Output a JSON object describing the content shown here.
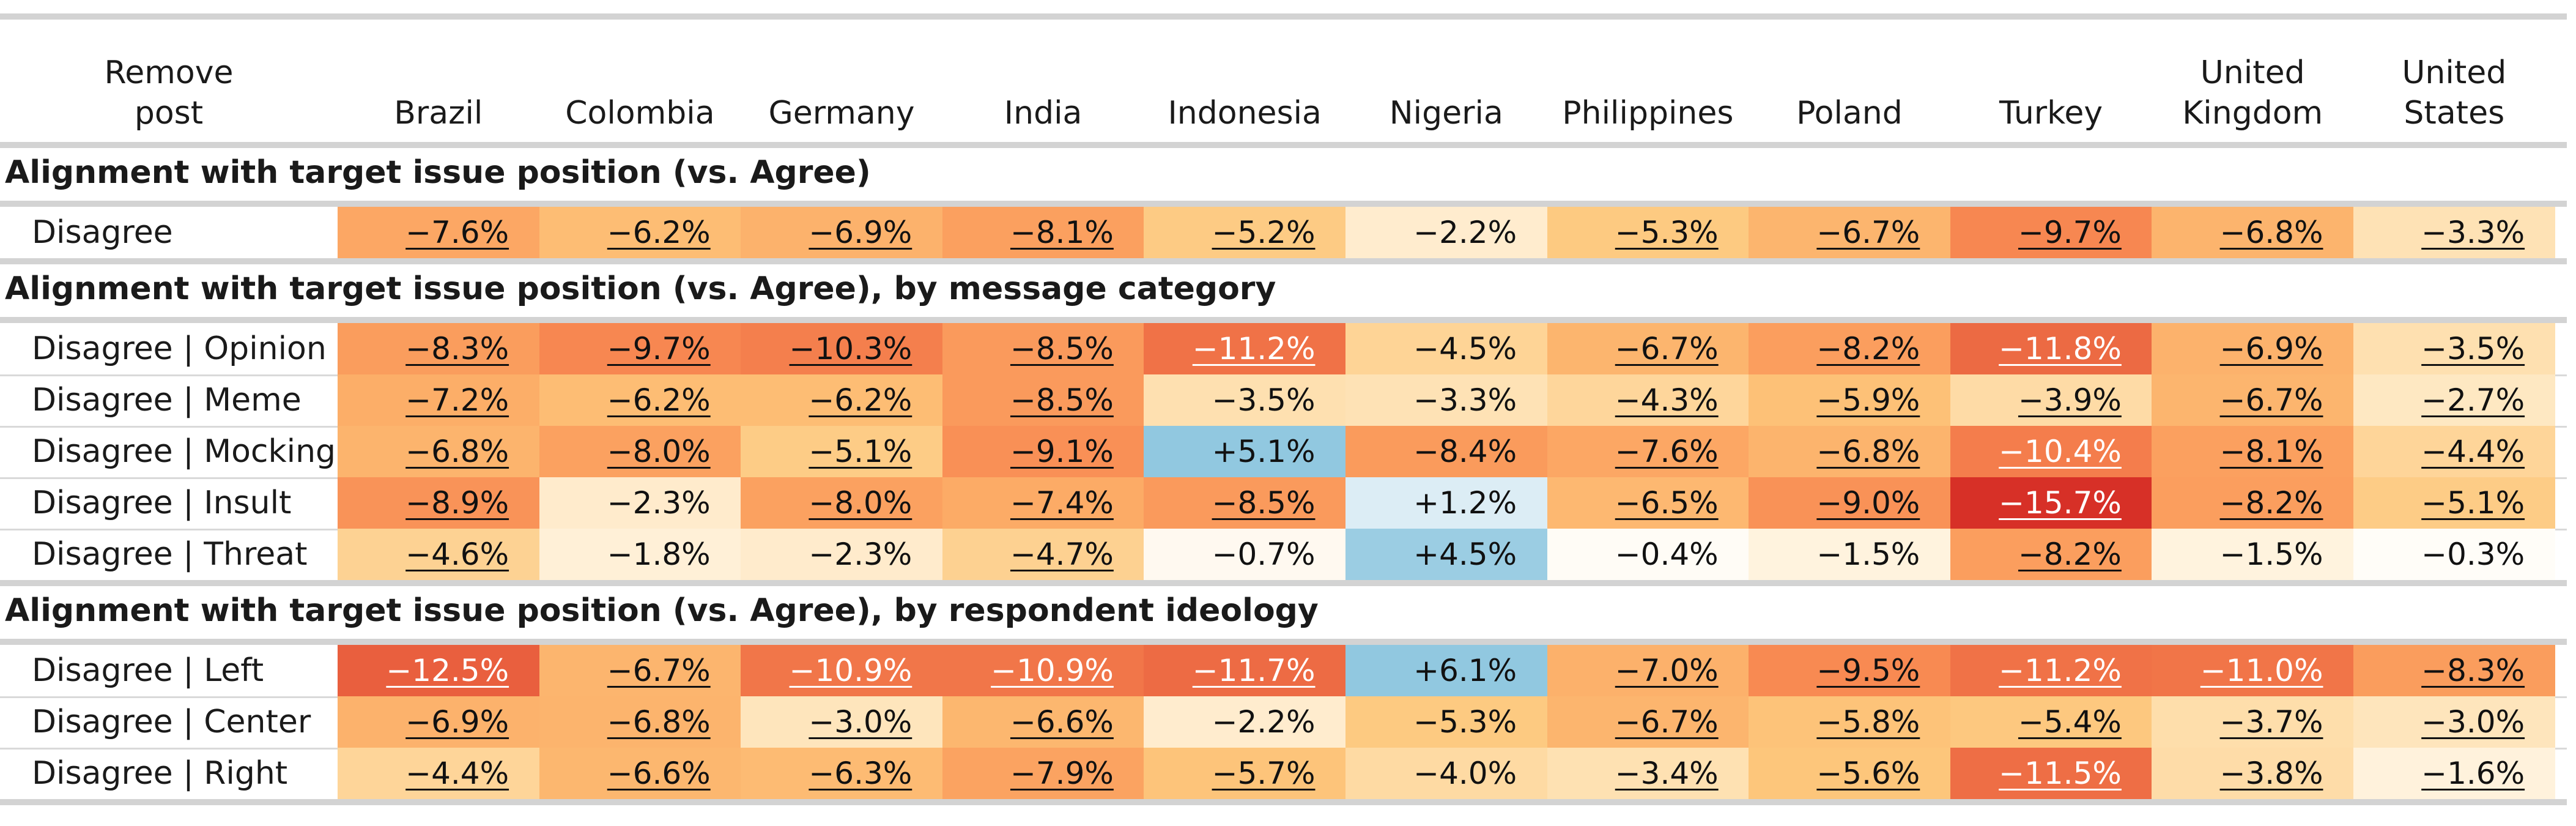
{
  "chart_data": {
    "type": "heatmap",
    "corner_label": "Remove\npost",
    "columns": [
      "Brazil",
      "Colombia",
      "Germany",
      "India",
      "Indonesia",
      "Nigeria",
      "Philippines",
      "Poland",
      "Turkey",
      "United\nKingdom",
      "United\nStates"
    ],
    "sections": [
      {
        "title": "Alignment with target issue position (vs. Agree)",
        "rows": [
          {
            "label": "Disagree",
            "values": [
              -7.6,
              -6.2,
              -6.9,
              -8.1,
              -5.2,
              -2.2,
              -5.3,
              -6.7,
              -9.7,
              -6.8,
              -3.3
            ],
            "labels": [
              "−7.6%",
              "−6.2%",
              "−6.9%",
              "−8.1%",
              "−5.2%",
              "−2.2%",
              "−5.3%",
              "−6.7%",
              "−9.7%",
              "−6.8%",
              "−3.3%"
            ],
            "underlined": [
              true,
              true,
              true,
              true,
              true,
              false,
              true,
              true,
              true,
              true,
              true
            ]
          }
        ]
      },
      {
        "title": "Alignment with target issue position (vs. Agree), by message category",
        "rows": [
          {
            "label": "Disagree | Opinion",
            "values": [
              -8.3,
              -9.7,
              -10.3,
              -8.5,
              -11.2,
              -4.5,
              -6.7,
              -8.2,
              -11.8,
              -6.9,
              -3.5
            ],
            "labels": [
              "−8.3%",
              "−9.7%",
              "−10.3%",
              "−8.5%",
              "−11.2%",
              "−4.5%",
              "−6.7%",
              "−8.2%",
              "−11.8%",
              "−6.9%",
              "−3.5%"
            ],
            "underlined": [
              true,
              true,
              true,
              true,
              true,
              false,
              true,
              true,
              true,
              true,
              true
            ]
          },
          {
            "label": "Disagree | Meme",
            "values": [
              -7.2,
              -6.2,
              -6.2,
              -8.5,
              -3.5,
              -3.3,
              -4.3,
              -5.9,
              -3.9,
              -6.7,
              -2.7
            ],
            "labels": [
              "−7.2%",
              "−6.2%",
              "−6.2%",
              "−8.5%",
              "−3.5%",
              "−3.3%",
              "−4.3%",
              "−5.9%",
              "−3.9%",
              "−6.7%",
              "−2.7%"
            ],
            "underlined": [
              true,
              true,
              true,
              true,
              false,
              false,
              true,
              true,
              true,
              true,
              true
            ]
          },
          {
            "label": "Disagree | Mocking",
            "values": [
              -6.8,
              -8.0,
              -5.1,
              -9.1,
              5.1,
              -8.4,
              -7.6,
              -6.8,
              -10.4,
              -8.1,
              -4.4
            ],
            "labels": [
              "−6.8%",
              "−8.0%",
              "−5.1%",
              "−9.1%",
              "+5.1%",
              "−8.4%",
              "−7.6%",
              "−6.8%",
              "−10.4%",
              "−8.1%",
              "−4.4%"
            ],
            "underlined": [
              true,
              true,
              true,
              true,
              false,
              false,
              true,
              true,
              true,
              true,
              true
            ]
          },
          {
            "label": "Disagree | Insult",
            "values": [
              -8.9,
              -2.3,
              -8.0,
              -7.4,
              -8.5,
              1.2,
              -6.5,
              -9.0,
              -15.7,
              -8.2,
              -5.1
            ],
            "labels": [
              "−8.9%",
              "−2.3%",
              "−8.0%",
              "−7.4%",
              "−8.5%",
              "+1.2%",
              "−6.5%",
              "−9.0%",
              "−15.7%",
              "−8.2%",
              "−5.1%"
            ],
            "underlined": [
              true,
              false,
              true,
              true,
              true,
              false,
              true,
              true,
              true,
              true,
              true
            ]
          },
          {
            "label": "Disagree | Threat",
            "values": [
              -4.6,
              -1.8,
              -2.3,
              -4.7,
              -0.7,
              4.5,
              -0.4,
              -1.5,
              -8.2,
              -1.5,
              -0.3
            ],
            "labels": [
              "−4.6%",
              "−1.8%",
              "−2.3%",
              "−4.7%",
              "−0.7%",
              "+4.5%",
              "−0.4%",
              "−1.5%",
              "−8.2%",
              "−1.5%",
              "−0.3%"
            ],
            "underlined": [
              true,
              false,
              false,
              true,
              false,
              false,
              false,
              false,
              true,
              false,
              false
            ]
          }
        ]
      },
      {
        "title": "Alignment with target issue position (vs. Agree), by respondent ideology",
        "rows": [
          {
            "label": "Disagree | Left",
            "values": [
              -12.5,
              -6.7,
              -10.9,
              -10.9,
              -11.7,
              6.1,
              -7.0,
              -9.5,
              -11.2,
              -11.0,
              -8.3
            ],
            "labels": [
              "−12.5%",
              "−6.7%",
              "−10.9%",
              "−10.9%",
              "−11.7%",
              "+6.1%",
              "−7.0%",
              "−9.5%",
              "−11.2%",
              "−11.0%",
              "−8.3%"
            ],
            "underlined": [
              true,
              true,
              true,
              true,
              true,
              false,
              true,
              true,
              true,
              true,
              true
            ]
          },
          {
            "label": "Disagree | Center",
            "values": [
              -6.9,
              -6.8,
              -3.0,
              -6.6,
              -2.2,
              -5.3,
              -6.7,
              -5.8,
              -5.4,
              -3.7,
              -3.0
            ],
            "labels": [
              "−6.9%",
              "−6.8%",
              "−3.0%",
              "−6.6%",
              "−2.2%",
              "−5.3%",
              "−6.7%",
              "−5.8%",
              "−5.4%",
              "−3.7%",
              "−3.0%"
            ],
            "underlined": [
              true,
              true,
              true,
              true,
              false,
              false,
              true,
              true,
              true,
              true,
              true
            ]
          },
          {
            "label": "Disagree | Right",
            "values": [
              -4.4,
              -6.6,
              -6.3,
              -7.9,
              -5.7,
              -4.0,
              -3.4,
              -5.6,
              -11.5,
              -3.8,
              -1.6
            ],
            "labels": [
              "−4.4%",
              "−6.6%",
              "−6.3%",
              "−7.9%",
              "−5.7%",
              "−4.0%",
              "−3.4%",
              "−5.6%",
              "−11.5%",
              "−3.8%",
              "−1.6%"
            ],
            "underlined": [
              true,
              true,
              true,
              true,
              true,
              false,
              true,
              true,
              true,
              true,
              true
            ]
          }
        ]
      }
    ],
    "color_scale": {
      "neg_extreme": "#d73027",
      "zero": "#ffffff",
      "pos_extreme": "#91c8e0"
    }
  }
}
